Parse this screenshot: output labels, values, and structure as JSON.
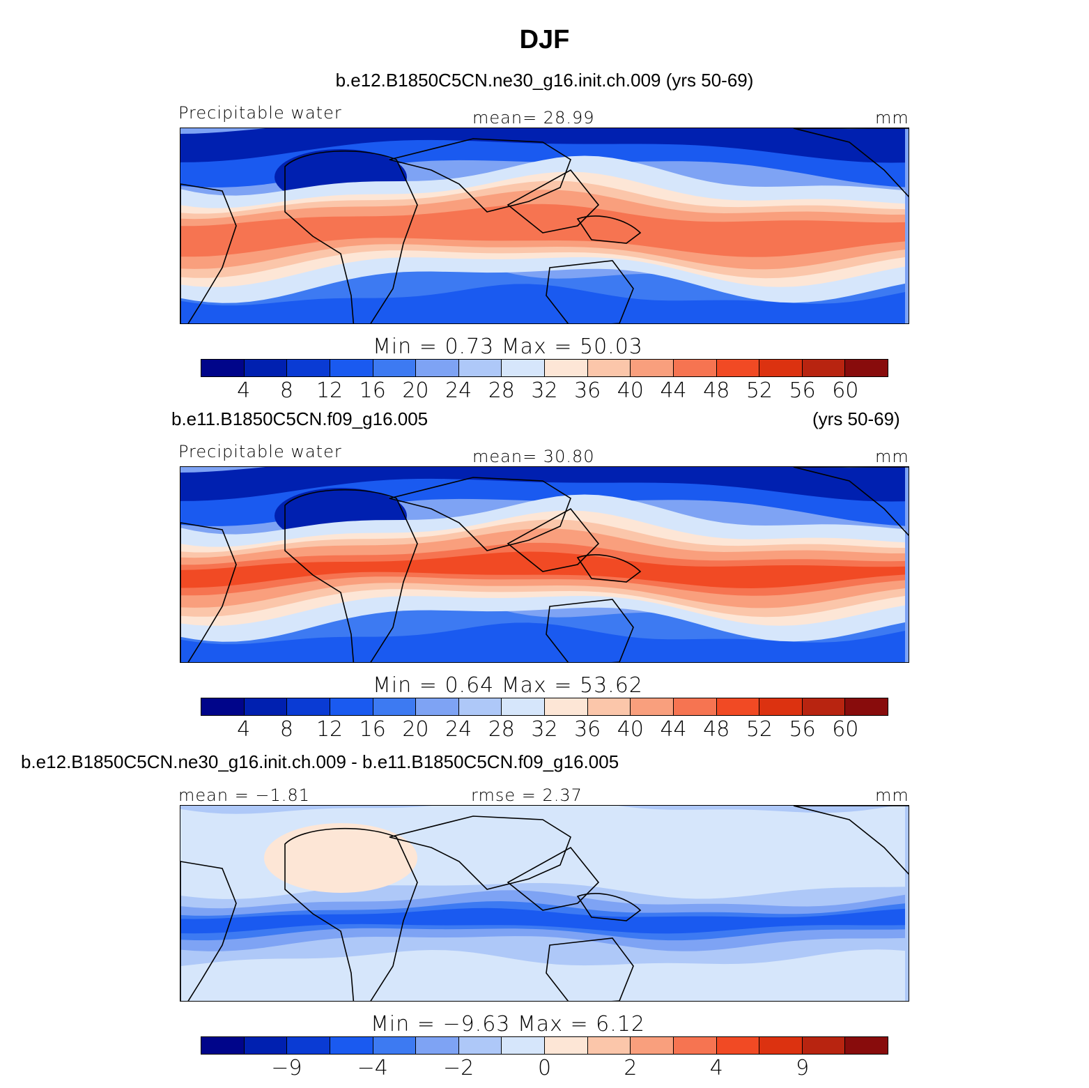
{
  "page_title": "DJF",
  "palette": [
    "#00058a",
    "#0020b0",
    "#0a3bd4",
    "#1a5af0",
    "#3d7af2",
    "#7ea3f4",
    "#aec8f8",
    "#d6e6fb",
    "#fde6d6",
    "#fbc6aa",
    "#f99f7d",
    "#f67451",
    "#f14a24",
    "#dc3210",
    "#b82410",
    "#880c0c"
  ],
  "panels": [
    {
      "case_label": "b.e12.B1850C5CN.ne30_g16.init.ch.009 (yrs 50-69)",
      "field_label": "Precipitable water",
      "center_label": "mean=   28.99",
      "units": "mm",
      "minmax": "Min =     0.73  Max =    50.03",
      "ticks": [
        "4",
        "8",
        "12",
        "16",
        "20",
        "24",
        "28",
        "32",
        "36",
        "40",
        "44",
        "48",
        "52",
        "56",
        "60"
      ],
      "base_level": 3
    },
    {
      "case_label": "b.e11.B1850C5CN.f09_g16.005",
      "years_label": "(yrs 50-69)",
      "field_label": "Precipitable water",
      "center_label": "mean=   30.80",
      "units": "mm",
      "minmax": "Min =     0.64  Max =    53.62",
      "ticks": [
        "4",
        "8",
        "12",
        "16",
        "20",
        "24",
        "28",
        "32",
        "36",
        "40",
        "44",
        "48",
        "52",
        "56",
        "60"
      ],
      "base_level": 4
    },
    {
      "case_label": "b.e12.B1850C5CN.ne30_g16.init.ch.009 - b.e11.B1850C5CN.f09_g16.005",
      "field_label": "mean =   −1.81",
      "center_label": "rmse =     2.37",
      "units": "mm",
      "minmax": "Min =   −9.63  Max =      6.12",
      "ticks": [
        "−9",
        "−4",
        "−2",
        "0",
        "2",
        "4",
        "9"
      ],
      "tick_slots": [
        2,
        4,
        6,
        8,
        10,
        12,
        14
      ]
    }
  ]
}
